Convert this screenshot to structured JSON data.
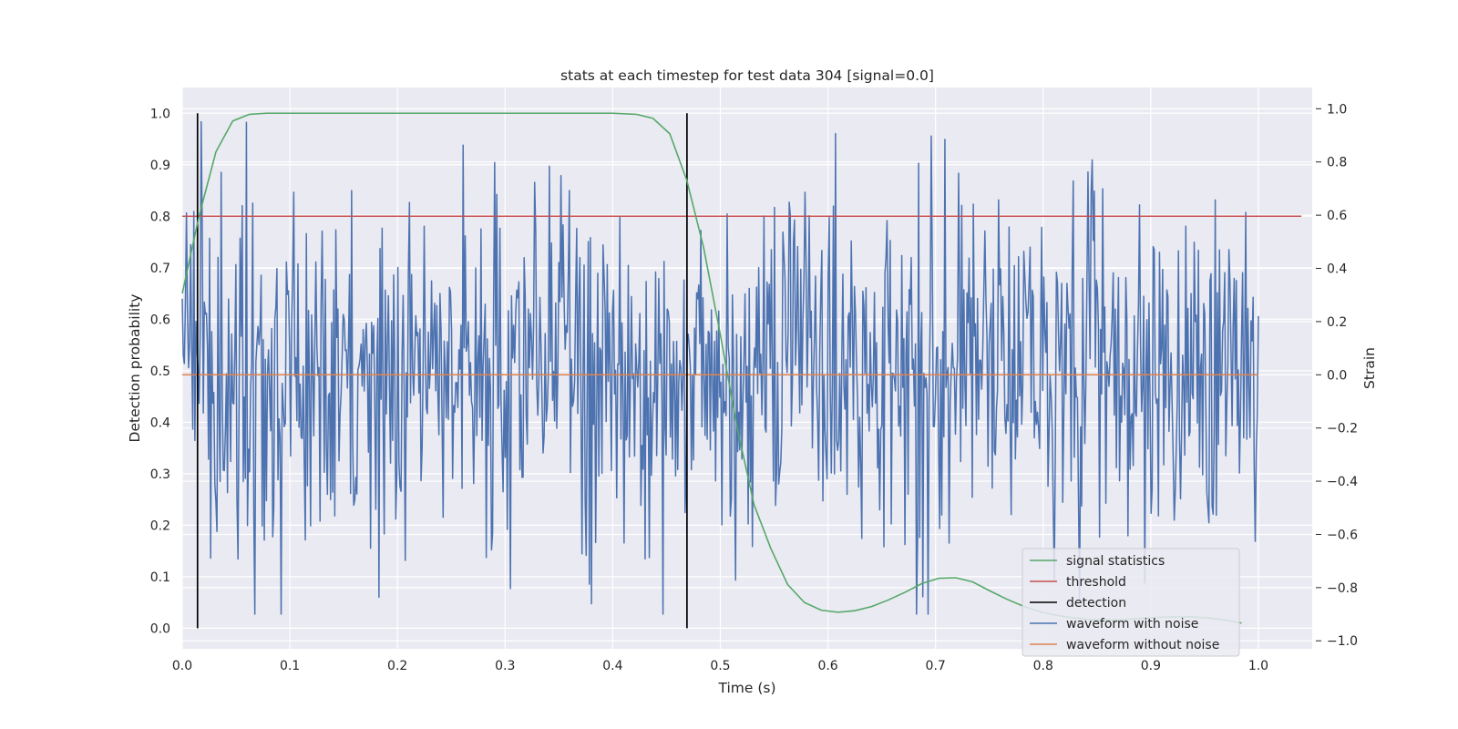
{
  "chart_data": {
    "type": "line",
    "title": "stats at each timestep for test data 304 [signal=0.0]",
    "xlabel": "Time (s)",
    "ylabel_left": "Detection probability",
    "ylabel_right": "Strain",
    "xlim": [
      0.0,
      1.05
    ],
    "ylim_left": [
      -0.04,
      1.05
    ],
    "ylim_right": [
      -1.03,
      1.08
    ],
    "xticks": [
      "0.0",
      "0.1",
      "0.2",
      "0.3",
      "0.4",
      "0.5",
      "0.6",
      "0.7",
      "0.8",
      "0.9",
      "1.0"
    ],
    "yticks_left": [
      "0.0",
      "0.1",
      "0.2",
      "0.3",
      "0.4",
      "0.5",
      "0.6",
      "0.7",
      "0.8",
      "0.9",
      "1.0"
    ],
    "yticks_right": [
      "−1.0",
      "−0.8",
      "−0.6",
      "−0.4",
      "−0.2",
      "0.0",
      "0.2",
      "0.4",
      "0.6",
      "0.8",
      "1.0"
    ],
    "grid": true,
    "legend_position": "lower-right",
    "series": [
      {
        "name": "signal statistics",
        "axis": "left",
        "color": "#55a868",
        "x": [
          0.0,
          0.0156,
          0.0313,
          0.0469,
          0.0625,
          0.0781,
          0.1,
          0.2,
          0.3,
          0.4,
          0.4219,
          0.4375,
          0.4531,
          0.4688,
          0.4844,
          0.5,
          0.5156,
          0.5313,
          0.5469,
          0.5625,
          0.5781,
          0.5938,
          0.6094,
          0.625,
          0.6406,
          0.6563,
          0.6719,
          0.6875,
          0.7031,
          0.7188,
          0.7344,
          0.75,
          0.7656,
          0.7813,
          0.7969,
          0.8125,
          0.8281,
          0.8438,
          0.8594,
          0.875,
          0.8906,
          0.9063,
          0.9219,
          0.9375,
          0.9531,
          0.9688,
          0.9844
        ],
        "y": [
          0.65,
          0.8,
          0.925,
          0.985,
          0.998,
          1.0,
          1.0,
          1.0,
          1.0,
          1.0,
          0.998,
          0.99,
          0.96,
          0.87,
          0.74,
          0.57,
          0.39,
          0.24,
          0.155,
          0.085,
          0.05,
          0.035,
          0.031,
          0.034,
          0.042,
          0.055,
          0.07,
          0.087,
          0.097,
          0.098,
          0.09,
          0.073,
          0.057,
          0.043,
          0.032,
          0.025,
          0.02,
          0.017,
          0.016,
          0.017,
          0.019,
          0.021,
          0.022,
          0.022,
          0.02,
          0.016,
          0.01
        ]
      },
      {
        "name": "threshold",
        "axis": "left",
        "color": "#c44e52",
        "x": [
          0.0,
          1.04
        ],
        "y": [
          0.8,
          0.8
        ]
      },
      {
        "name": "detection",
        "axis": "left",
        "color": "#000000",
        "vlines": [
          0.0142,
          0.469
        ],
        "ymin": 0.0,
        "ymax": 1.0
      },
      {
        "name": "waveform with noise",
        "axis": "right",
        "color": "#4c72b0",
        "x_range": [
          0.0,
          1.0
        ],
        "n_points": 1024,
        "seed": 304,
        "std": 0.33,
        "y_range": [
          -0.9,
          1.0
        ]
      },
      {
        "name": "waveform without noise",
        "axis": "right",
        "color": "#dd8452",
        "x": [
          0.0,
          1.0
        ],
        "y": [
          0.0,
          0.0
        ]
      }
    ]
  }
}
